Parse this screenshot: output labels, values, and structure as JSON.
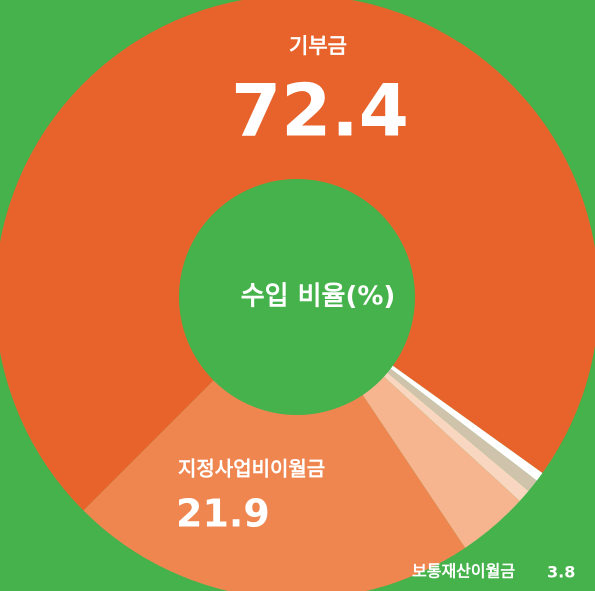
{
  "chart_data": {
    "type": "donut",
    "title": "수입 비율(%)",
    "categories": [
      "기부금",
      null,
      null,
      null,
      "보통재산이월금",
      "지정사업비이월금"
    ],
    "values": [
      72.4,
      0.5,
      0.7,
      0.7,
      3.8,
      21.9
    ],
    "colors": [
      "#e8632c",
      "#ffffff",
      "#cfc4ab",
      "#f9d6bf",
      "#f6b58e",
      "#ef8650"
    ],
    "background": "#45b24b"
  }
}
